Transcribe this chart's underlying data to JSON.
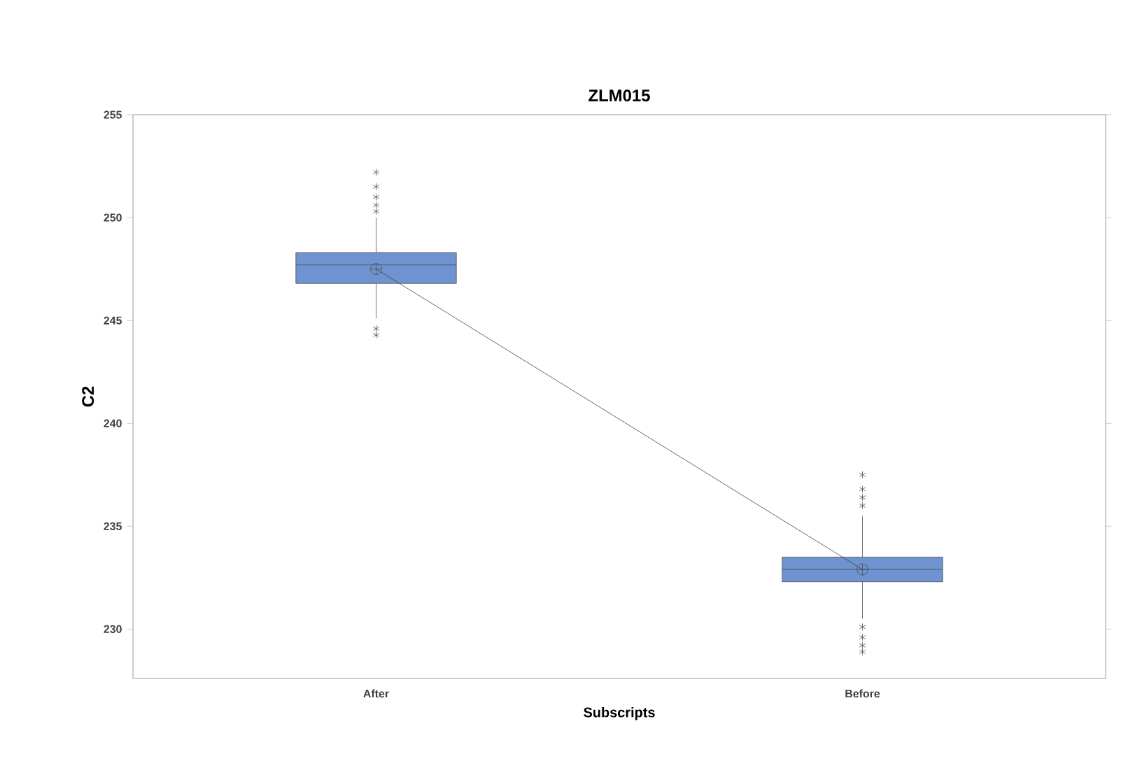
{
  "chart_data": {
    "type": "box",
    "title": "ZLM015",
    "xlabel": "Subscripts",
    "ylabel": "C2",
    "categories": [
      "After",
      "Before"
    ],
    "color": "#6f93d0",
    "boxes": [
      {
        "low": 245.1,
        "q1": 246.8,
        "median": 247.7,
        "q3": 248.3,
        "high": 250.0,
        "mean": 247.5,
        "outliers": [
          244.3,
          244.6,
          250.3,
          250.6,
          251.0,
          251.5,
          252.2
        ]
      },
      {
        "low": 230.5,
        "q1": 232.3,
        "median": 232.9,
        "q3": 233.5,
        "high": 235.5,
        "mean": 232.9,
        "outliers": [
          228.9,
          229.2,
          229.6,
          230.1,
          236.0,
          236.4,
          236.8,
          237.5
        ]
      }
    ],
    "series": [
      {
        "type": "line",
        "x": [
          "After",
          "Before"
        ],
        "values": [
          247.5,
          232.9
        ],
        "color": "#404040"
      }
    ],
    "ylim": [
      227.6,
      255
    ],
    "yticks": [
      230,
      235,
      240,
      245,
      250,
      255
    ],
    "grid": false
  }
}
